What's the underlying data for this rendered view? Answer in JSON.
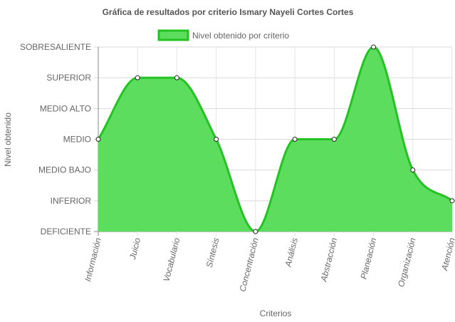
{
  "chart_data": {
    "type": "area",
    "title": "Gráfica de resultados por criterio Ismary Nayeli Cortes Cortes",
    "xlabel": "Criterios",
    "ylabel": "Nivel obtenido",
    "levels": [
      "DEFICIENTE",
      "INFERIOR",
      "MEDIO BAJO",
      "MEDIO",
      "MEDIO ALTO",
      "SUPERIOR",
      "SOBRESALIENTE"
    ],
    "categories": [
      "Información",
      "Juicio",
      "Vocabulario",
      "Síntesis",
      "Concentración",
      "Análisis",
      "Abstracción",
      "Planeación",
      "Organización",
      "Atención"
    ],
    "series": [
      {
        "name": "Nivel obtenido por criterio",
        "values": [
          3,
          5,
          5,
          3,
          0,
          3,
          3,
          6,
          2,
          1
        ],
        "color": "#22c322",
        "fill": "#5ddd5d"
      }
    ],
    "ylim": [
      0,
      6
    ],
    "grid": true,
    "legend": "top-center"
  }
}
